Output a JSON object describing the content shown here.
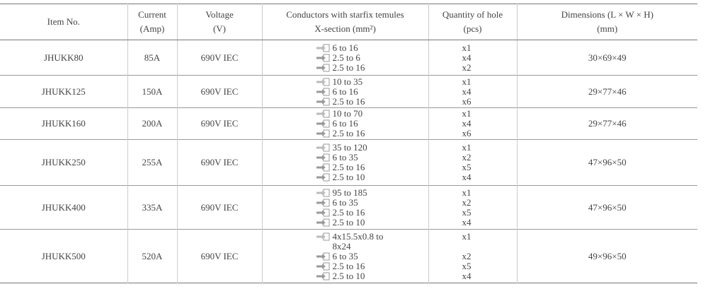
{
  "table": {
    "header": [
      [
        "Item No."
      ],
      [
        "Current",
        "(Amp)"
      ],
      [
        "Voltage",
        "(V)"
      ],
      [
        "Conductors with starfix temules",
        "X-section (mm²)"
      ],
      [
        "Quantity of hole",
        "(pcs)"
      ],
      [
        "Dimensions (L × W × H)",
        "(mm)"
      ]
    ],
    "rows": [
      {
        "item": "JHUKK80",
        "current": "85A",
        "voltage": "690V IEC",
        "conductors": [
          "6 to 16",
          "2.5 to 6",
          "2.5 to 16"
        ],
        "holes": [
          "x1",
          "x4",
          "x2"
        ],
        "dimensions": "30×69×49"
      },
      {
        "item": "JHUKK125",
        "current": "150A",
        "voltage": "690V IEC",
        "conductors": [
          "10 to 35",
          "6 to 16",
          "2.5 to 16"
        ],
        "holes": [
          "x1",
          "x4",
          "x6"
        ],
        "dimensions": "29×77×46"
      },
      {
        "item": "JHUKK160",
        "current": "200A",
        "voltage": "690V IEC",
        "conductors": [
          "10 to 70",
          "6 to 16",
          "2.5 to 16"
        ],
        "holes": [
          "x1",
          "x4",
          "x6"
        ],
        "dimensions": "29×77×46"
      },
      {
        "item": "JHUKK250",
        "current": "255A",
        "voltage": "690V IEC",
        "conductors": [
          "35 to 120",
          "6 to 35",
          "2.5 to 16",
          "2.5 to 10"
        ],
        "holes": [
          "x1",
          "x2",
          "x5",
          "x4"
        ],
        "dimensions": "47×96×50"
      },
      {
        "item": "JHUKK400",
        "current": "335A",
        "voltage": "690V IEC",
        "conductors": [
          "95 to 185",
          "6 to 35",
          "2.5 to 16",
          "2.5 to 10"
        ],
        "holes": [
          "x1",
          "x2",
          "x5",
          "x4"
        ],
        "dimensions": "47×96×50"
      },
      {
        "item": "JHUKK500",
        "current": "520A",
        "voltage": "690V IEC",
        "conductors": [
          "4x15.5x0.8 to 8x24",
          "6 to 35",
          "2.5 to 16",
          "2.5 to 10"
        ],
        "holes": [
          "x1",
          "x2",
          "x5",
          "x4"
        ],
        "dimensions": "49×96×50"
      }
    ]
  }
}
